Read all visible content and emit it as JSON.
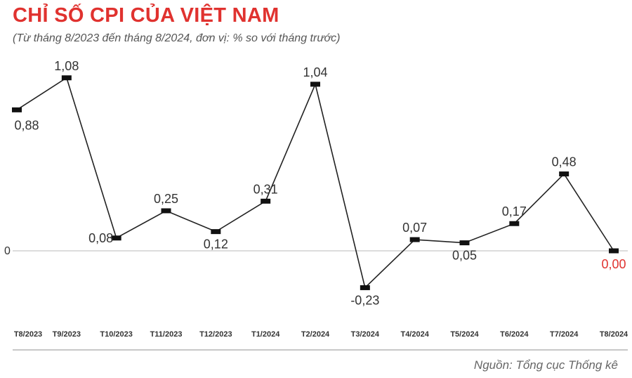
{
  "title": "CHỈ SỐ CPI CỦA VIỆT NAM",
  "subtitle": "(Từ tháng 8/2023 đến tháng 8/2024, đơn vị: % so với tháng trước)",
  "source": "Nguồn: Tổng cục Thống kê",
  "colors": {
    "title": "#e0322f",
    "line": "#222222",
    "highlight": "#e0322f"
  },
  "chart_data": {
    "type": "line",
    "title": "CHỈ SỐ CPI CỦA VIỆT NAM",
    "xlabel": "",
    "ylabel": "",
    "categories": [
      "T8/2023",
      "T9/2023",
      "T10/2023",
      "T11/2023",
      "T12/2023",
      "T1/2024",
      "T2/2024",
      "T3/2024",
      "T4/2024",
      "T5/2024",
      "T6/2024",
      "T7/2024",
      "T8/2024"
    ],
    "values": [
      0.88,
      1.08,
      0.08,
      0.25,
      0.12,
      0.31,
      1.04,
      -0.23,
      0.07,
      0.05,
      0.17,
      0.48,
      0.0
    ],
    "value_labels": [
      "0,88",
      "1,08",
      "0,08",
      "0,25",
      "0,12",
      "0,31",
      "1,04",
      "-0,23",
      "0,07",
      "0,05",
      "0,17",
      "0,48",
      "0,00"
    ],
    "y_ticks": [
      {
        "value": 0,
        "label": "0"
      }
    ],
    "ylim": [
      -0.45,
      1.2
    ],
    "grid": false,
    "legend": "none"
  }
}
